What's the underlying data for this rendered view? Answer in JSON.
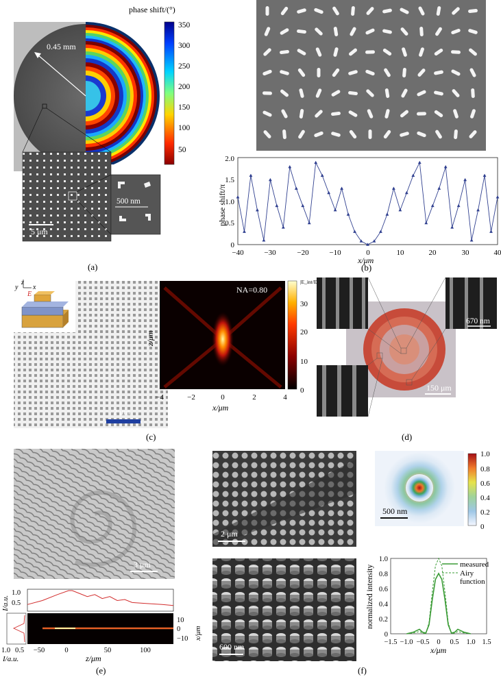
{
  "panels": {
    "a": {
      "label": "(a)",
      "colorbar_title": "phase shift/(°)",
      "colorbar_ticks": [
        "350",
        "300",
        "250",
        "200",
        "150",
        "100",
        "50"
      ],
      "radius_label": "0.45 mm",
      "inset_scale": "5 μm",
      "zoom_scale": "500 nm"
    },
    "b": {
      "label": "(b)",
      "ylabel": "phase shift/π",
      "xlabel": "x/μm",
      "xticks": [
        "−40",
        "−30",
        "−20",
        "−10",
        "0",
        "10",
        "20",
        "30",
        "40"
      ],
      "yticks": [
        "0",
        "0.5",
        "1.0",
        "1.5",
        "2.0"
      ]
    },
    "c": {
      "label": "(c)",
      "scale": "2 μm",
      "na_label": "NA=0.80",
      "colorbar_title": "|E_int/E_0|²",
      "colorbar_ticks": [
        "30",
        "20",
        "10",
        "0"
      ],
      "ylabel": "z/μm",
      "xlabel": "x/μm",
      "xticks": [
        "−4",
        "−2",
        "0",
        "2",
        "4"
      ],
      "schematic_axes": [
        "z",
        "y",
        "x",
        "E"
      ]
    },
    "d": {
      "label": "(d)",
      "scale_big": "150 μm",
      "scale_small": "670 nm"
    },
    "e": {
      "label": "(e)",
      "scale": "3 μm",
      "ylabel_top": "I/a.u.",
      "yticks_top": [
        "1.0",
        "0.5"
      ],
      "right_label": "x/μm",
      "right_ticks": [
        "10",
        "0",
        "−10"
      ],
      "xlabel": "z/μm",
      "xticks": [
        "−50",
        "0",
        "50",
        "100"
      ],
      "left_ticks": [
        "1.0",
        "0.5"
      ],
      "left_label": "I/a.u."
    },
    "f": {
      "label": "(f)",
      "scale_top": "2 μm",
      "scale_bottom": "600 nm",
      "spot_scale": "500 nm",
      "colorbar_ticks": [
        "1.0",
        "0.8",
        "0.6",
        "0.4",
        "0.2",
        "0"
      ],
      "ylabel": "normalized intensity",
      "xlabel": "x/μm",
      "xticks": [
        "−1.5",
        "−1.0",
        "−0.5",
        "0",
        "0.5",
        "1.0",
        "1.5"
      ],
      "yticks": [
        "0",
        "0.2",
        "0.4",
        "0.6",
        "0.8",
        "1.0"
      ],
      "legend": [
        "measured",
        "Airy",
        "function"
      ]
    }
  },
  "colors": {
    "line_blue": "#2f3f8f",
    "line_red": "#d22c2c",
    "line_green": "#3a9b35",
    "sem_gray": "#5a5a5a"
  },
  "chart_data": [
    {
      "type": "line",
      "panel": "b",
      "xlabel": "x/μm",
      "ylabel": "phase shift/π",
      "xlim": [
        -40,
        40
      ],
      "ylim": [
        0,
        2
      ],
      "series": [
        {
          "description_points": "hyperbolic lens phase profile wrapped to [0,2]",
          "x": [
            -40,
            -38,
            -36,
            -34,
            -32,
            -30,
            -28,
            -26,
            -24,
            -22,
            -20,
            -18,
            -16,
            -14,
            -12,
            -10,
            -8,
            -6,
            -4,
            -2,
            0,
            2,
            4,
            6,
            8,
            10,
            12,
            14,
            16,
            18,
            20,
            22,
            24,
            26,
            28,
            30,
            32,
            34,
            36,
            38,
            40
          ],
          "y": [
            1.1,
            0.3,
            1.6,
            0.8,
            0.1,
            1.5,
            0.9,
            0.4,
            1.8,
            1.3,
            0.9,
            0.5,
            1.9,
            1.6,
            1.2,
            0.8,
            1.3,
            0.7,
            0.3,
            0.08,
            0.0,
            0.08,
            0.3,
            0.7,
            1.3,
            0.8,
            1.2,
            1.6,
            1.9,
            0.5,
            0.9,
            1.3,
            1.8,
            0.4,
            0.9,
            1.5,
            0.1,
            0.8,
            1.6,
            0.3,
            1.1
          ]
        }
      ]
    },
    {
      "type": "line",
      "panel": "f",
      "xlabel": "x/μm",
      "ylabel": "normalized intensity",
      "xlim": [
        -1.5,
        1.5
      ],
      "ylim": [
        0,
        1.0
      ],
      "series": [
        {
          "name": "measured",
          "x": [
            -1.0,
            -0.8,
            -0.6,
            -0.5,
            -0.4,
            -0.3,
            -0.2,
            -0.1,
            0,
            0.1,
            0.2,
            0.3,
            0.4,
            0.5,
            0.6,
            0.8,
            1.0
          ],
          "y": [
            0.0,
            0.02,
            0.06,
            0.02,
            0.01,
            0.12,
            0.45,
            0.72,
            0.8,
            0.72,
            0.45,
            0.12,
            0.01,
            0.02,
            0.06,
            0.02,
            0.0
          ]
        },
        {
          "name": "Airy",
          "x": [
            -1.0,
            -0.8,
            -0.6,
            -0.5,
            -0.4,
            -0.3,
            -0.2,
            -0.1,
            0,
            0.1,
            0.2,
            0.3,
            0.4,
            0.5,
            0.6,
            0.8,
            1.0
          ],
          "y": [
            0.0,
            0.01,
            0.03,
            0.01,
            0.0,
            0.15,
            0.55,
            0.9,
            1.0,
            0.9,
            0.55,
            0.15,
            0.0,
            0.01,
            0.03,
            0.01,
            0.0
          ]
        }
      ]
    },
    {
      "type": "line",
      "panel": "e",
      "xlabel": "z/μm",
      "ylabel": "I/a.u.",
      "xlim": [
        -60,
        135
      ],
      "ylim": [
        0,
        1.0
      ],
      "series": [
        {
          "x": [
            -60,
            -40,
            -20,
            -5,
            0,
            10,
            20,
            30,
            40,
            50,
            60,
            70,
            80,
            100,
            120,
            135
          ],
          "y": [
            0.3,
            0.5,
            0.8,
            1.0,
            1.0,
            0.85,
            0.7,
            0.8,
            0.6,
            0.7,
            0.5,
            0.55,
            0.4,
            0.35,
            0.3,
            0.25
          ]
        }
      ]
    }
  ]
}
